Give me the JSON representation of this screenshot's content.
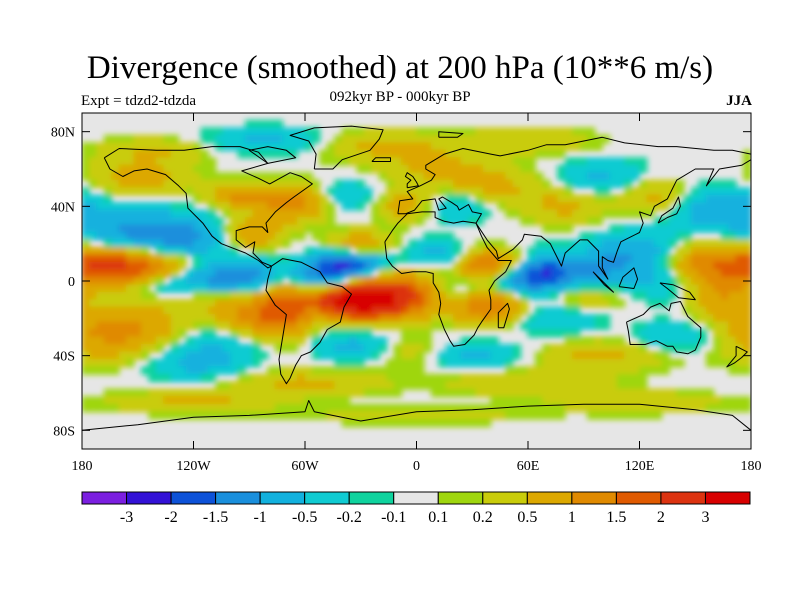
{
  "chart_data": {
    "type": "heatmap",
    "title": "Divergence (smoothed) at 200 hPa (10**6 m/s)",
    "subtitle": "092kyr BP - 000kyr BP",
    "left_label": "Expt = tdzd2-tdzda",
    "right_label": "JJA",
    "x_range": [
      -180,
      180
    ],
    "y_range": [
      -90,
      90
    ],
    "x_ticks": [
      {
        "value": -180,
        "label": "180"
      },
      {
        "value": -120,
        "label": "120W"
      },
      {
        "value": -60,
        "label": "60W"
      },
      {
        "value": 0,
        "label": "0"
      },
      {
        "value": 60,
        "label": "60E"
      },
      {
        "value": 120,
        "label": "120E"
      },
      {
        "value": 180,
        "label": "180"
      }
    ],
    "y_ticks": [
      {
        "value": 80,
        "label": "80N"
      },
      {
        "value": 40,
        "label": "40N"
      },
      {
        "value": 0,
        "label": "0"
      },
      {
        "value": -40,
        "label": "40S"
      },
      {
        "value": -80,
        "label": "80S"
      }
    ],
    "colorbar": {
      "levels": [
        "-3",
        "-2",
        "-1.5",
        "-1",
        "-0.5",
        "-0.2",
        "-0.1",
        "0.1",
        "0.2",
        "0.5",
        "1",
        "1.5",
        "2",
        "3"
      ],
      "colors": [
        "#7b1fe0",
        "#3311d6",
        "#0d52d8",
        "#1a8fdc",
        "#12b1de",
        "#10cbd2",
        "#0fd39e",
        "#e6e6e6",
        "#9fd60e",
        "#c9cc0a",
        "#dca800",
        "#e08a00",
        "#e05a00",
        "#dc3310",
        "#d80000"
      ]
    },
    "features": [
      {
        "name": "central-pacific-divergence",
        "lon": -160,
        "lat": 8,
        "value": 1.5
      },
      {
        "name": "east-pacific-convergence",
        "lon": -105,
        "lat": 0,
        "value": -1.5
      },
      {
        "name": "south-atlantic-divergence",
        "lon": -20,
        "lat": -8,
        "value": 2.5
      },
      {
        "name": "tropical-atlantic-convergence",
        "lon": -38,
        "lat": 8,
        "value": -2
      },
      {
        "name": "indian-ocean-convergence",
        "lon": 65,
        "lat": 3,
        "value": -2.5
      },
      {
        "name": "east-africa-divergence",
        "lon": 38,
        "lat": 8,
        "value": 1.5
      },
      {
        "name": "north-atlantic-divergence",
        "lon": -65,
        "lat": 42,
        "value": 1.2
      }
    ]
  }
}
